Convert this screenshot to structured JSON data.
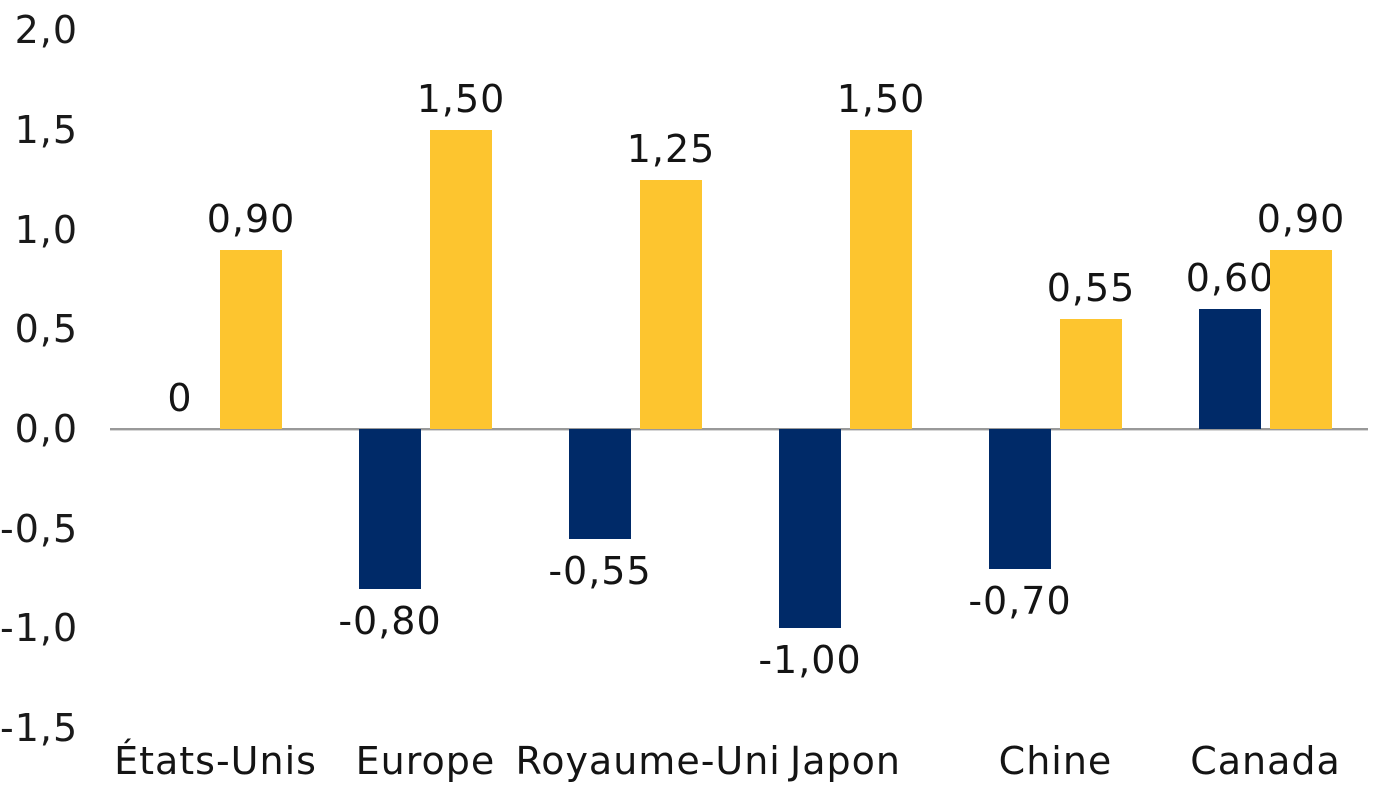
{
  "chart_data": {
    "type": "bar",
    "categories": [
      "États-Unis",
      "Europe",
      "Royaume-Uni",
      "Japon",
      "Chine",
      "Canada"
    ],
    "series": [
      {
        "name": "series-navy",
        "color": "#002A68",
        "values": [
          0,
          -0.8,
          -0.55,
          -1.0,
          -0.7,
          0.6
        ],
        "labels": [
          "0",
          "-0,80",
          "-0,55",
          "-1,00",
          "-0,70",
          "0,60"
        ]
      },
      {
        "name": "series-gold",
        "color": "#FDC52F",
        "values": [
          0.9,
          1.5,
          1.25,
          1.5,
          0.55,
          0.9
        ],
        "labels": [
          "0,90",
          "1,50",
          "1,25",
          "1,50",
          "0,55",
          "0,90"
        ]
      }
    ],
    "y_axis": {
      "ticks": [
        "2,0",
        "1,5",
        "1,0",
        "0,5",
        "0,0",
        "-0,5",
        "-1,0",
        "-1,5"
      ],
      "tick_values": [
        2.0,
        1.5,
        1.0,
        0.5,
        0.0,
        -0.5,
        -1.0,
        -1.5
      ],
      "range": [
        -1.5,
        2.0
      ]
    },
    "title": "",
    "xlabel": "",
    "ylabel": "",
    "legend": "none",
    "grid": false,
    "decimal_separator": ",",
    "axis_line_color": "#999999",
    "background": "#FFFFFF"
  }
}
